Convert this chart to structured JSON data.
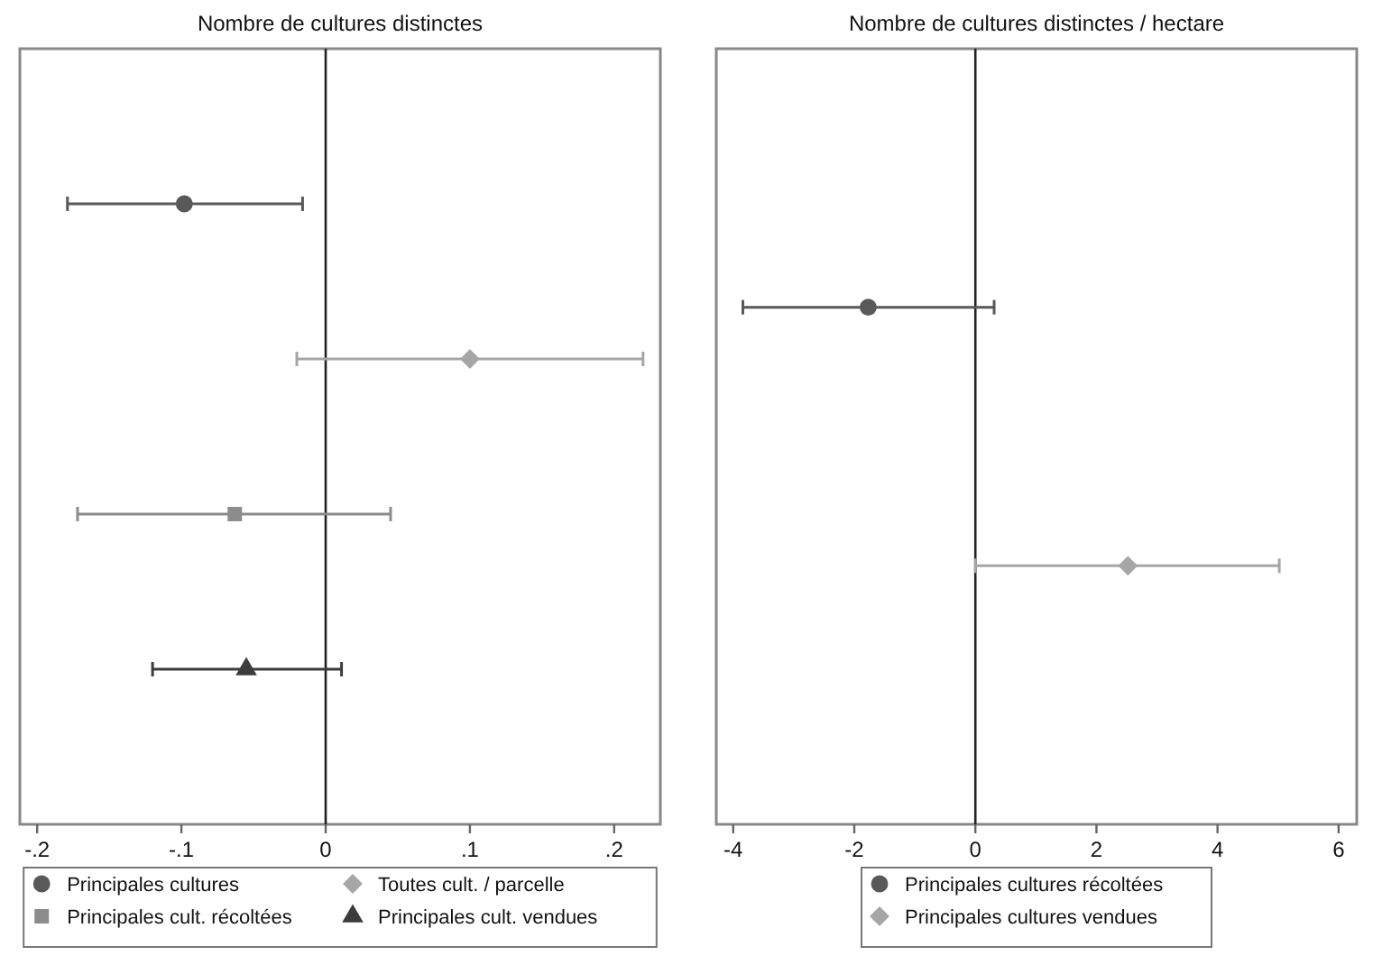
{
  "chart_data": [
    {
      "type": "scatter",
      "title": "Nombre de cultures distinctes",
      "orientation": "horizontal",
      "categories": [
        null,
        null,
        null,
        null
      ],
      "tick_labels": "x",
      "legend": "bottom",
      "xlim": [
        -0.212,
        0.232
      ],
      "xticks": [
        {
          "value": -0.2,
          "label": "-.2"
        },
        {
          "value": -0.1,
          "label": "-.1"
        },
        0,
        {
          "value": 0.1,
          "label": ".1"
        },
        {
          "value": 0.2,
          "label": ".2"
        }
      ],
      "ref_lines": [
        {
          "axis": "x",
          "value": 0,
          "color": "#222222"
        }
      ],
      "series": [
        {
          "name": "Principales cultures",
          "color": "#595959",
          "marker": "circle",
          "values": [
            -0.098,
            null,
            null,
            null
          ],
          "errors": [
            [
              -0.179,
              -0.016
            ],
            null,
            null,
            null
          ]
        },
        {
          "name": "Toutes cult. / parcelle",
          "color": "#a6a6a6",
          "marker": "diamond",
          "values": [
            null,
            0.1,
            null,
            null
          ],
          "errors": [
            null,
            [
              -0.02,
              0.22
            ],
            null,
            null
          ]
        },
        {
          "name": "Principales cult. récoltées",
          "color": "#8c8c8c",
          "marker": "square",
          "values": [
            null,
            null,
            -0.063,
            null
          ],
          "errors": [
            null,
            null,
            [
              -0.172,
              0.045
            ],
            null
          ]
        },
        {
          "name": "Principales cult. vendues",
          "color": "#3c3c3c",
          "marker": "triangle",
          "values": [
            null,
            null,
            null,
            -0.055
          ],
          "errors": [
            null,
            null,
            null,
            [
              -0.12,
              0.011
            ]
          ]
        }
      ]
    },
    {
      "type": "scatter",
      "title": "Nombre de cultures distinctes / hectare",
      "orientation": "horizontal",
      "categories": [
        null,
        null
      ],
      "tick_labels": "x",
      "legend": "bottom",
      "xlim": [
        -4.28,
        6.3
      ],
      "xticks": [
        -4,
        -2,
        0,
        2,
        4,
        6
      ],
      "ref_lines": [
        {
          "axis": "x",
          "value": 0,
          "color": "#222222"
        }
      ],
      "series": [
        {
          "name": "Principales cultures récoltées",
          "color": "#595959",
          "marker": "circle",
          "values": [
            -1.77,
            null
          ],
          "errors": [
            [
              -3.84,
              0.31
            ],
            null
          ]
        },
        {
          "name": "Principales cultures vendues",
          "color": "#a6a6a6",
          "marker": "diamond",
          "values": [
            null,
            2.52
          ],
          "errors": [
            null,
            [
              0.0,
              5.02
            ]
          ]
        }
      ]
    }
  ]
}
